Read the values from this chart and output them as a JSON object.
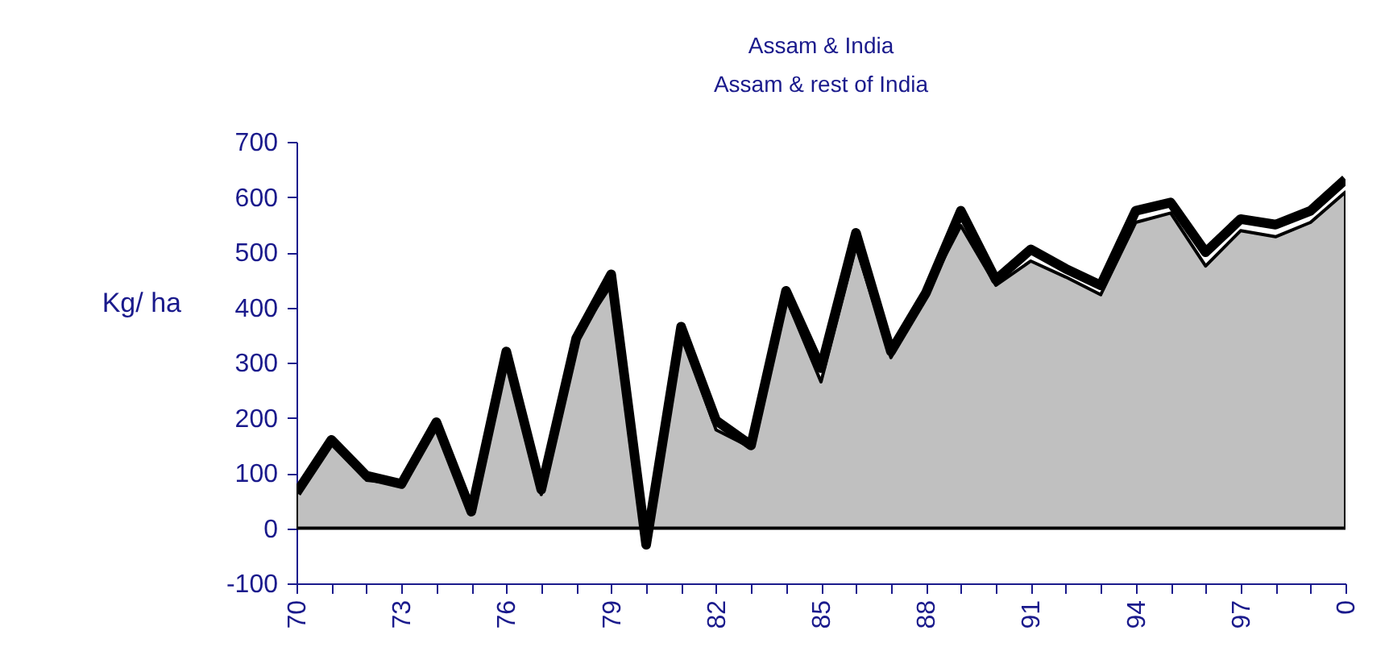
{
  "chart_data": {
    "type": "area",
    "title": "Assam & India",
    "subtitle": "Assam & rest of India",
    "ylabel": "Kg/ ha",
    "categories": [
      "70",
      null,
      null,
      "73",
      null,
      null,
      "76",
      null,
      null,
      "79",
      null,
      null,
      "82",
      null,
      null,
      "85",
      null,
      null,
      "88",
      null,
      null,
      "91",
      null,
      null,
      "94",
      null,
      null,
      "97",
      null,
      null,
      "0"
    ],
    "series": [
      {
        "type": "line",
        "color": "#000000",
        "values": [
          64,
          160,
          95,
          80,
          192,
          30,
          320,
          70,
          344,
          460,
          -30,
          365,
          195,
          150,
          430,
          290,
          535,
          320,
          426,
          575,
          450,
          505,
          470,
          440,
          575,
          590,
          500,
          560,
          550,
          575,
          632
        ]
      },
      {
        "color": "#c0c0c0",
        "values": [
          64,
          155,
          87,
          80,
          189,
          26,
          306,
          61,
          344,
          440,
          0,
          353,
          178,
          146,
          417,
          265,
          510,
          309,
          426,
          548,
          440,
          484,
          455,
          423,
          554,
          571,
          475,
          539,
          528,
          554,
          609
        ]
      }
    ],
    "ylim": [
      -100,
      700
    ],
    "yticks": [
      -100,
      0,
      100,
      200,
      300,
      400,
      500,
      600,
      700
    ],
    "grid": false
  }
}
